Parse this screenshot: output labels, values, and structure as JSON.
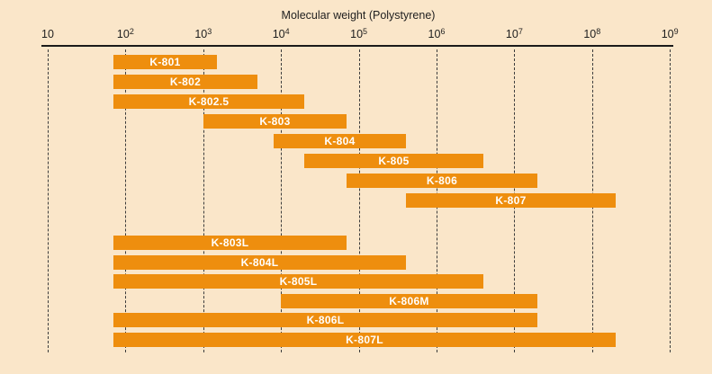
{
  "chart_data": {
    "type": "bar",
    "orientation": "horizontal-range",
    "title": "Molecular weight (Polystyrene)",
    "x_axis": {
      "scale": "log10",
      "range": [
        10,
        1000000000
      ],
      "tick_exponents": [
        1,
        2,
        3,
        4,
        5,
        6,
        7,
        8,
        9
      ],
      "tick_label_base": "10",
      "grid": "dashed-vertical"
    },
    "legend": "none",
    "series": [
      {
        "label": "K-801",
        "mw_min": 70,
        "mw_max": 1500,
        "group": "standard"
      },
      {
        "label": "K-802",
        "mw_min": 70,
        "mw_max": 5000,
        "group": "standard"
      },
      {
        "label": "K-802.5",
        "mw_min": 70,
        "mw_max": 20000,
        "group": "standard"
      },
      {
        "label": "K-803",
        "mw_min": 1000,
        "mw_max": 70000,
        "group": "standard"
      },
      {
        "label": "K-804",
        "mw_min": 8000,
        "mw_max": 400000,
        "group": "standard"
      },
      {
        "label": "K-805",
        "mw_min": 20000,
        "mw_max": 4000000,
        "group": "standard"
      },
      {
        "label": "K-806",
        "mw_min": 70000,
        "mw_max": 20000000,
        "group": "standard"
      },
      {
        "label": "K-807",
        "mw_min": 400000,
        "mw_max": 200000000,
        "group": "standard"
      },
      {
        "label": "K-803L",
        "mw_min": 70,
        "mw_max": 70000,
        "group": "linear"
      },
      {
        "label": "K-804L",
        "mw_min": 70,
        "mw_max": 400000,
        "group": "linear"
      },
      {
        "label": "K-805L",
        "mw_min": 70,
        "mw_max": 4000000,
        "group": "linear"
      },
      {
        "label": "K-806M",
        "mw_min": 10000,
        "mw_max": 20000000,
        "group": "linear"
      },
      {
        "label": "K-806L",
        "mw_min": 70,
        "mw_max": 20000000,
        "group": "linear"
      },
      {
        "label": "K-807L",
        "mw_min": 70,
        "mw_max": 200000000,
        "group": "linear"
      }
    ],
    "colors": {
      "background": "#fae6c9",
      "bar": "#ee8e0e",
      "bar_label": "#ffffff",
      "axis": "#1a1a1a",
      "gridline": "#3c3c3c"
    }
  }
}
